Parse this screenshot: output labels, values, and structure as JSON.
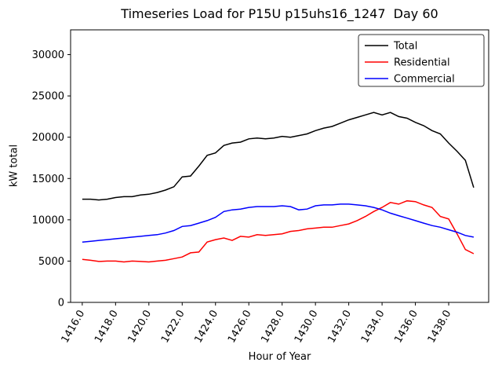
{
  "figure": {
    "background": "#ffffff"
  },
  "chart_data": {
    "type": "line",
    "title": "Timeseries Load for P15U p15uhs16_1247  Day 60",
    "xlabel": "Hour of Year",
    "ylabel": "kW total",
    "xlim": [
      1415.3,
      1440.4
    ],
    "ylim": [
      0,
      33000
    ],
    "grid": false,
    "legend_position": "upper right",
    "xticks": [
      1416,
      1418,
      1420,
      1422,
      1424,
      1426,
      1428,
      1430,
      1432,
      1434,
      1436,
      1438
    ],
    "xtick_labels": [
      "1416.0",
      "1418.0",
      "1420.0",
      "1422.0",
      "1424.0",
      "1426.0",
      "1428.0",
      "1430.0",
      "1432.0",
      "1434.0",
      "1436.0",
      "1438.0"
    ],
    "yticks": [
      0,
      5000,
      10000,
      15000,
      20000,
      25000,
      30000
    ],
    "x": [
      1416.0,
      1416.5,
      1417.0,
      1417.5,
      1418.0,
      1418.5,
      1419.0,
      1419.5,
      1420.0,
      1420.5,
      1421.0,
      1421.5,
      1422.0,
      1422.5,
      1423.0,
      1423.5,
      1424.0,
      1424.5,
      1425.0,
      1425.5,
      1426.0,
      1426.5,
      1427.0,
      1427.5,
      1428.0,
      1428.5,
      1429.0,
      1429.5,
      1430.0,
      1430.5,
      1431.0,
      1431.5,
      1432.0,
      1432.5,
      1433.0,
      1433.5,
      1434.0,
      1434.5,
      1435.0,
      1435.5,
      1436.0,
      1436.5,
      1437.0,
      1437.5,
      1438.0,
      1438.5,
      1439.0,
      1439.5
    ],
    "series": [
      {
        "name": "Total",
        "color": "#000000",
        "values": [
          12500,
          12500,
          12400,
          12500,
          12700,
          12800,
          12800,
          13000,
          13100,
          13300,
          13600,
          14000,
          15200,
          15300,
          16500,
          17800,
          18100,
          19000,
          19300,
          19400,
          19800,
          19900,
          19800,
          19900,
          20100,
          20000,
          20200,
          20400,
          20800,
          21100,
          21300,
          21700,
          22100,
          22400,
          22700,
          23000,
          22700,
          23000,
          22500,
          22300,
          21800,
          21400,
          20800,
          20400,
          19300,
          18300,
          17200,
          13900
        ]
      },
      {
        "name": "Residential",
        "color": "#ff0000",
        "values": [
          5200,
          5100,
          4950,
          5000,
          5000,
          4900,
          5000,
          4950,
          4900,
          5000,
          5100,
          5300,
          5500,
          6000,
          6100,
          7300,
          7600,
          7800,
          7500,
          8000,
          7900,
          8200,
          8100,
          8200,
          8300,
          8600,
          8700,
          8900,
          9000,
          9100,
          9100,
          9300,
          9500,
          9900,
          10400,
          11000,
          11500,
          12100,
          11900,
          12300,
          12200,
          11800,
          11500,
          10400,
          10100,
          8300,
          6400,
          5900
        ]
      },
      {
        "name": "Commercial",
        "color": "#0000ff",
        "values": [
          7300,
          7400,
          7500,
          7600,
          7700,
          7800,
          7900,
          8000,
          8100,
          8200,
          8400,
          8700,
          9200,
          9300,
          9600,
          9900,
          10300,
          11000,
          11200,
          11300,
          11500,
          11600,
          11600,
          11600,
          11700,
          11600,
          11200,
          11300,
          11700,
          11800,
          11800,
          11900,
          11900,
          11800,
          11700,
          11500,
          11200,
          10800,
          10500,
          10200,
          9900,
          9600,
          9300,
          9100,
          8800,
          8500,
          8100,
          7900
        ]
      }
    ]
  }
}
